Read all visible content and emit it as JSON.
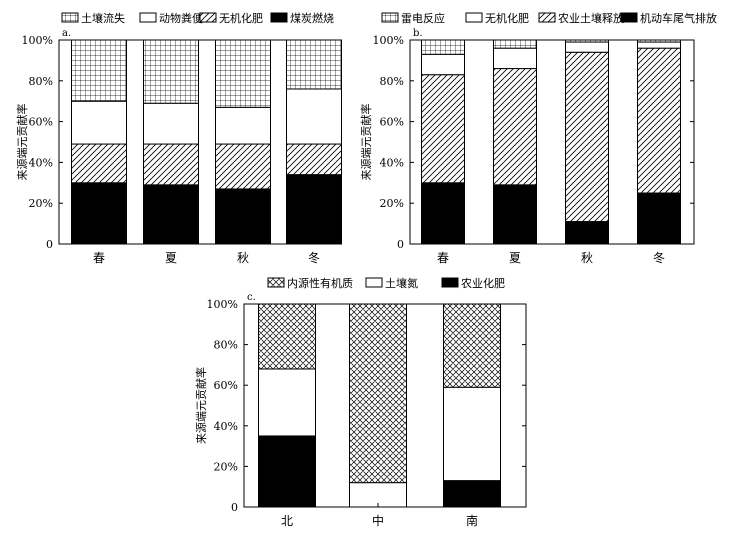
{
  "chart_data": [
    {
      "type": "bar",
      "stacked": true,
      "panel_label": "a.",
      "ylabel": "来源端元贡献率",
      "ylim": [
        0,
        100
      ],
      "y_ticks": [
        "0",
        "20%",
        "40%",
        "60%",
        "80%",
        "100%"
      ],
      "categories": [
        "春",
        "夏",
        "秋",
        "冬"
      ],
      "legend_position": "top",
      "series": [
        {
          "name": "煤炭燃烧",
          "pattern": "solid",
          "values": [
            30,
            29,
            27,
            34
          ]
        },
        {
          "name": "无机化肥",
          "pattern": "diagonal",
          "values": [
            19,
            20,
            22,
            15
          ]
        },
        {
          "name": "动物粪便",
          "pattern": "blank",
          "values": [
            21,
            20,
            18,
            27
          ]
        },
        {
          "name": "土壤流失",
          "pattern": "grid",
          "values": [
            30,
            31,
            33,
            24
          ]
        }
      ],
      "legend_order": [
        "土壤流失",
        "动物粪便",
        "无机化肥",
        "煤炭燃烧"
      ]
    },
    {
      "type": "bar",
      "stacked": true,
      "panel_label": "b.",
      "ylabel": "来源端元贡献率",
      "ylim": [
        0,
        100
      ],
      "y_ticks": [
        "0",
        "20%",
        "40%",
        "60%",
        "80%",
        "100%"
      ],
      "categories": [
        "春",
        "夏",
        "秋",
        "冬"
      ],
      "legend_position": "top",
      "series": [
        {
          "name": "机动车尾气排放",
          "pattern": "solid",
          "values": [
            30,
            29,
            11,
            25
          ]
        },
        {
          "name": "农业土壤释放",
          "pattern": "diagonal",
          "values": [
            53,
            57,
            83,
            71
          ]
        },
        {
          "name": "无机化肥",
          "pattern": "blank",
          "values": [
            10,
            10,
            5,
            3
          ]
        },
        {
          "name": "雷电反应",
          "pattern": "grid",
          "values": [
            7,
            4,
            1,
            1
          ]
        }
      ],
      "legend_order": [
        "雷电反应",
        "无机化肥",
        "农业土壤释放",
        "机动车尾气排放"
      ]
    },
    {
      "type": "bar",
      "stacked": true,
      "panel_label": "c.",
      "ylabel": "来源端元贡献率",
      "ylim": [
        0,
        100
      ],
      "y_ticks": [
        "0",
        "20%",
        "40%",
        "60%",
        "80%",
        "100%"
      ],
      "categories": [
        "北",
        "中",
        "南"
      ],
      "legend_position": "top",
      "series": [
        {
          "name": "农业化肥",
          "pattern": "solid",
          "values": [
            35,
            0,
            13
          ]
        },
        {
          "name": "土壤氮",
          "pattern": "blank",
          "values": [
            33,
            12,
            46
          ]
        },
        {
          "name": "内源性有机质",
          "pattern": "crosshatch",
          "values": [
            32,
            88,
            41
          ]
        }
      ],
      "legend_order": [
        "内源性有机质",
        "土壤氮",
        "农业化肥"
      ]
    }
  ]
}
